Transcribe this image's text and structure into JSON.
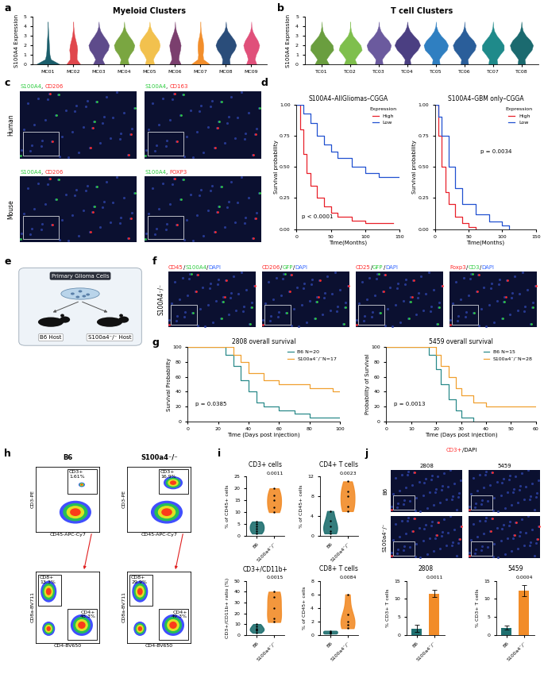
{
  "chart_data": [
    {
      "panel": "a",
      "type": "violin",
      "title": "Myeloid Clusters",
      "ylabel": "S100A4 Expression",
      "categories": [
        "MC01",
        "MC02",
        "MC03",
        "MC04",
        "MC05",
        "MC06",
        "MC07",
        "MC08",
        "MC09"
      ],
      "colors": [
        "#1b5e6b",
        "#e0474c",
        "#5e4b8b",
        "#7aa641",
        "#f2c14e",
        "#7b3f6e",
        "#f28e2b",
        "#2a4d7a",
        "#e0507a"
      ],
      "density_y": [
        0,
        0.5,
        1,
        1.5,
        2,
        2.5,
        3,
        3.5,
        4,
        4.5
      ],
      "widths": [
        [
          1.0,
          0.25,
          0.15,
          0.12,
          0.1,
          0.08,
          0.05,
          0.03,
          0.01,
          0
        ],
        [
          0.6,
          0.3,
          0.3,
          0.35,
          0.3,
          0.2,
          0.1,
          0.05,
          0.01,
          0
        ],
        [
          0.5,
          0.3,
          0.5,
          0.8,
          0.9,
          0.7,
          0.4,
          0.15,
          0.03,
          0
        ],
        [
          0.4,
          0.3,
          0.5,
          0.8,
          0.9,
          0.7,
          0.4,
          0.15,
          0.03,
          0
        ],
        [
          0.4,
          0.3,
          0.5,
          0.8,
          0.9,
          0.8,
          0.5,
          0.2,
          0.05,
          0
        ],
        [
          0.5,
          0.3,
          0.35,
          0.45,
          0.5,
          0.4,
          0.25,
          0.1,
          0.02,
          0
        ],
        [
          0.8,
          0.25,
          0.2,
          0.25,
          0.25,
          0.2,
          0.1,
          0.04,
          0.01,
          0
        ],
        [
          0.35,
          0.3,
          0.45,
          0.75,
          0.9,
          0.75,
          0.45,
          0.15,
          0.03,
          0
        ],
        [
          0.45,
          0.3,
          0.4,
          0.6,
          0.7,
          0.55,
          0.3,
          0.1,
          0.02,
          0
        ]
      ],
      "ylim": [
        0,
        5
      ],
      "yticks": [
        0,
        1,
        2,
        3,
        4,
        5
      ]
    },
    {
      "panel": "b",
      "type": "violin",
      "title": "T cell Clusters",
      "ylabel": "S100A4 Expression",
      "categories": [
        "TC01",
        "TC02",
        "TC03",
        "TC04",
        "TC05",
        "TC06",
        "TC07",
        "TC08"
      ],
      "colors": [
        "#6a9e3f",
        "#7fbf4d",
        "#6b5a9e",
        "#4b3f82",
        "#2f7fc1",
        "#2a5e9a",
        "#1f8a8a",
        "#1b6a6f"
      ],
      "density_y": [
        0,
        0.5,
        1,
        1.5,
        2,
        2.5,
        3,
        3.5,
        4,
        4.5
      ],
      "widths": [
        [
          0.55,
          0.35,
          0.6,
          0.9,
          0.85,
          0.55,
          0.25,
          0.08,
          0.02,
          0
        ],
        [
          0.5,
          0.35,
          0.6,
          0.9,
          0.8,
          0.5,
          0.2,
          0.06,
          0.01,
          0
        ],
        [
          0.3,
          0.25,
          0.5,
          0.85,
          0.95,
          0.75,
          0.4,
          0.15,
          0.03,
          0
        ],
        [
          0.25,
          0.2,
          0.45,
          0.8,
          1.0,
          0.85,
          0.5,
          0.2,
          0.05,
          0
        ],
        [
          0.3,
          0.25,
          0.5,
          0.85,
          0.95,
          0.75,
          0.4,
          0.15,
          0.03,
          0
        ],
        [
          0.3,
          0.25,
          0.5,
          0.8,
          0.9,
          0.7,
          0.35,
          0.12,
          0.02,
          0
        ],
        [
          0.35,
          0.3,
          0.55,
          0.85,
          0.85,
          0.6,
          0.3,
          0.1,
          0.02,
          0
        ],
        [
          0.3,
          0.25,
          0.5,
          0.8,
          0.9,
          0.7,
          0.35,
          0.12,
          0.03,
          0
        ]
      ],
      "ylim": [
        0,
        5
      ],
      "yticks": [
        0,
        1,
        2,
        3,
        4,
        5
      ]
    },
    {
      "panel": "d",
      "type": "survival",
      "title": "S100A4–AllGliomas–CGGA",
      "xlabel": "Time(Months)",
      "ylabel": "Survival probability",
      "legend": "upper right",
      "legend_title": "Expression",
      "annotation": "p < 0.0001",
      "series": [
        {
          "name": "High",
          "color": "#e8202a",
          "x": [
            0,
            5,
            10,
            15,
            20,
            30,
            40,
            50,
            60,
            80,
            100,
            120,
            140
          ],
          "values": [
            1,
            0.8,
            0.6,
            0.45,
            0.35,
            0.25,
            0.18,
            0.13,
            0.1,
            0.07,
            0.05,
            0.05,
            0.05
          ]
        },
        {
          "name": "Low",
          "color": "#2050d0",
          "x": [
            0,
            10,
            20,
            30,
            40,
            50,
            60,
            80,
            100,
            120,
            150
          ],
          "values": [
            1,
            0.93,
            0.85,
            0.75,
            0.68,
            0.62,
            0.57,
            0.5,
            0.45,
            0.42,
            0.42
          ]
        }
      ],
      "xlim": [
        0,
        150
      ],
      "xticks": [
        0,
        50,
        100,
        150
      ],
      "ylim": [
        0,
        1
      ],
      "yticks": [
        {
          "value": 0,
          "label": "0.00"
        },
        {
          "value": 0.25,
          "label": "0.25"
        },
        {
          "value": 0.5,
          "label": "0.50"
        },
        {
          "value": 0.75,
          "label": "0.75"
        },
        {
          "value": 1,
          "label": "1.00"
        }
      ]
    },
    {
      "panel": "d",
      "type": "survival",
      "title": "S100A4–GBM only–CGGA",
      "xlabel": "Time(Months)",
      "ylabel": "Survival probability",
      "legend": "upper right",
      "legend_title": "Expression",
      "annotation": "p = 0.0034",
      "series": [
        {
          "name": "High",
          "color": "#e8202a",
          "x": [
            0,
            5,
            10,
            15,
            20,
            30,
            40,
            50,
            60
          ],
          "values": [
            1,
            0.75,
            0.5,
            0.3,
            0.2,
            0.1,
            0.05,
            0.02,
            0
          ]
        },
        {
          "name": "Low",
          "color": "#2050d0",
          "x": [
            0,
            5,
            10,
            20,
            30,
            40,
            60,
            80,
            100,
            110
          ],
          "values": [
            1,
            0.9,
            0.75,
            0.5,
            0.33,
            0.2,
            0.12,
            0.06,
            0.03,
            0
          ]
        }
      ],
      "xlim": [
        0,
        150
      ],
      "xticks": [
        0,
        50,
        100,
        150
      ],
      "ylim": [
        0,
        1
      ],
      "yticks": [
        {
          "value": 0,
          "label": "0.00"
        },
        {
          "value": 0.25,
          "label": "0.25"
        },
        {
          "value": 0.5,
          "label": "0.50"
        },
        {
          "value": 0.75,
          "label": "0.75"
        },
        {
          "value": 1,
          "label": "1.00"
        }
      ]
    },
    {
      "panel": "g",
      "type": "survival",
      "title": "2808 overall survival",
      "xlabel": "Time (Days post injection)",
      "ylabel": "Survival Probability",
      "legend": "upper right",
      "annotation": "p = 0.0385",
      "series": [
        {
          "name": "B6 N=20",
          "color": "#2a8a8a",
          "x": [
            0,
            25,
            30,
            35,
            40,
            45,
            50,
            60,
            70,
            80,
            100
          ],
          "values": [
            100,
            90,
            75,
            55,
            40,
            25,
            20,
            15,
            10,
            5,
            5
          ]
        },
        {
          "name": "S100a4⁻/⁻N=17",
          "color": "#f0a030",
          "x": [
            0,
            30,
            35,
            40,
            50,
            60,
            80,
            95,
            100
          ],
          "values": [
            100,
            90,
            80,
            65,
            55,
            50,
            45,
            40,
            40
          ]
        }
      ],
      "xlim": [
        0,
        100
      ],
      "xticks": [
        0,
        20,
        40,
        60,
        80,
        100
      ],
      "ylim": [
        0,
        100
      ],
      "yticks": [
        0,
        20,
        40,
        60,
        80,
        100
      ]
    },
    {
      "panel": "g",
      "type": "survival",
      "title": "5459 overall survival",
      "xlabel": "Time (Days post injection)",
      "ylabel": "Probability of Survival",
      "legend": "upper right",
      "annotation": "p = 0.0013",
      "series": [
        {
          "name": "B6 N=15",
          "color": "#2a8a8a",
          "x": [
            0,
            17,
            20,
            22,
            25,
            28,
            30,
            35
          ],
          "values": [
            100,
            90,
            70,
            50,
            30,
            15,
            5,
            0
          ]
        },
        {
          "name": "S100a4⁻/⁻N=28",
          "color": "#f0a030",
          "x": [
            0,
            20,
            22,
            25,
            28,
            30,
            35,
            40,
            60
          ],
          "values": [
            100,
            90,
            75,
            60,
            45,
            35,
            25,
            20,
            20
          ]
        }
      ],
      "xlim": [
        0,
        60
      ],
      "xticks": [
        0,
        10,
        20,
        30,
        40,
        50,
        60
      ],
      "ylim": [
        0,
        100
      ],
      "yticks": [
        0,
        20,
        40,
        60,
        80,
        100
      ]
    },
    {
      "panel": "i",
      "type": "violin",
      "title": "CD3+ cells",
      "ylabel": "% of CD45+ cells",
      "annotation": "0.0011",
      "categories": [
        "B6",
        "S100a4⁻/⁻"
      ],
      "colors": [
        "#1f6f6f",
        "#f28c28"
      ],
      "points": [
        [
          1,
          2,
          3,
          4,
          5,
          6
        ],
        [
          10,
          12,
          15,
          17,
          20
        ]
      ],
      "ylim": [
        0,
        25
      ],
      "yticks": [
        0,
        5,
        10,
        15,
        20,
        25
      ]
    },
    {
      "panel": "i",
      "type": "violin",
      "title": "CD4+ T cells",
      "ylabel": "% of CD45+ cells",
      "annotation": "0.0023",
      "categories": [
        "B6",
        "S100a4⁻/⁻"
      ],
      "colors": [
        "#1f6f6f",
        "#f28c28"
      ],
      "points": [
        [
          0.5,
          1,
          2,
          3,
          5
        ],
        [
          5,
          6,
          8,
          9,
          11
        ]
      ],
      "ylim": [
        0,
        12
      ],
      "yticks": [
        0,
        4,
        8,
        12
      ]
    },
    {
      "panel": "i",
      "type": "violin",
      "title": "CD3+/CD11b+",
      "ylabel": "CD3+/CD11b+ ratio (%)",
      "annotation": "0.0015",
      "categories": [
        "B6",
        "S100a4⁻/⁻"
      ],
      "colors": [
        "#1f6f6f",
        "#f28c28"
      ],
      "points": [
        [
          2,
          4,
          5,
          6,
          8,
          10
        ],
        [
          12,
          15,
          25,
          35,
          40
        ]
      ],
      "ylim": [
        0,
        50
      ],
      "yticks": [
        0,
        10,
        20,
        30,
        40,
        50
      ]
    },
    {
      "panel": "i",
      "type": "violin",
      "title": "CD8+ T cells",
      "ylabel": "% of CD45+ cells",
      "annotation": "0.0084",
      "categories": [
        "B6",
        "S100a4⁻/⁻"
      ],
      "colors": [
        "#1f6f6f",
        "#f28c28"
      ],
      "points": [
        [
          0.2,
          0.3,
          0.5,
          0.6
        ],
        [
          1,
          1.5,
          2,
          3,
          6
        ]
      ],
      "ylim": [
        0,
        8
      ],
      "yticks": [
        0,
        2,
        4,
        6,
        8
      ]
    },
    {
      "panel": "j",
      "type": "bar",
      "title": "2808",
      "ylabel": "% CD3+ T cells",
      "annotation": "0.0011",
      "categories": [
        "B6",
        "S100a4⁻/⁻"
      ],
      "values": [
        1.8,
        11.5
      ],
      "errors": [
        1,
        1
      ],
      "colors": [
        "#1f6f6f",
        "#f28c28"
      ],
      "ylim": [
        0,
        15
      ],
      "yticks": [
        0,
        5,
        10,
        15
      ]
    },
    {
      "panel": "j",
      "type": "bar",
      "title": "5459",
      "ylabel": "% CD3+ T cells",
      "annotation": "0.0004",
      "categories": [
        "B6",
        "S100a4⁻/⁻"
      ],
      "values": [
        2,
        12.3
      ],
      "errors": [
        0.5,
        1.5
      ],
      "colors": [
        "#1f6f6f",
        "#f28c28"
      ],
      "ylim": [
        0,
        15
      ],
      "yticks": [
        0,
        5,
        10,
        15
      ]
    }
  ],
  "micrographs": [
    {
      "panel": "c",
      "separator": ", ",
      "rows": [
        {
          "label": "Human",
          "images": [
            {
              "stains": [
                {
                  "text": "S100A4",
                  "color": "#2ecc40"
                },
                {
                  "text": "CD206",
                  "color": "#ff2a2a"
                }
              ]
            },
            {
              "stains": [
                {
                  "text": "S100A4",
                  "color": "#2ecc40"
                },
                {
                  "text": "CD163",
                  "color": "#ff2a2a"
                }
              ]
            }
          ]
        },
        {
          "label": "Mouse",
          "images": [
            {
              "stains": [
                {
                  "text": "S100A4",
                  "color": "#2ecc40"
                },
                {
                  "text": "CD206",
                  "color": "#ff2a2a"
                }
              ]
            },
            {
              "stains": [
                {
                  "text": "S100A4",
                  "color": "#2ecc40"
                },
                {
                  "text": "FOXP3",
                  "color": "#ff2a2a"
                }
              ]
            }
          ]
        }
      ]
    },
    {
      "panel": "f",
      "separator": "/",
      "rows": [
        {
          "label": "S100A4⁻/⁻",
          "images": [
            {
              "stains": [
                {
                  "text": "CD45",
                  "color": "#ff2a2a"
                },
                {
                  "text": "S100A4",
                  "color": "#2ecc40"
                },
                {
                  "text": "DAPI",
                  "color": "#3a6cff"
                }
              ]
            },
            {
              "stains": [
                {
                  "text": "CD206",
                  "color": "#ff2a2a"
                },
                {
                  "text": "GFP",
                  "color": "#2ecc40"
                },
                {
                  "text": "DAPI",
                  "color": "#3a6cff"
                }
              ]
            },
            {
              "stains": [
                {
                  "text": "CD25",
                  "color": "#ff2a2a"
                },
                {
                  "text": "GFP",
                  "color": "#2ecc40"
                },
                {
                  "text": "DAPI",
                  "color": "#3a6cff"
                }
              ]
            },
            {
              "stains": [
                {
                  "text": "Foxp3",
                  "color": "#ff2a2a"
                },
                {
                  "text": "CD3",
                  "color": "#2ecc40"
                },
                {
                  "text": "DAPI",
                  "color": "#3a6cff"
                }
              ]
            }
          ]
        }
      ]
    }
  ],
  "micrograph_grid": {
    "panel": "j",
    "header": [
      {
        "text": "CD3+",
        "color": "#ff3030"
      },
      {
        "text": "/DAPI",
        "color": "#000000"
      }
    ],
    "columns": [
      "2808",
      "5459"
    ],
    "rows": [
      "B6",
      "S100a4⁻/⁻"
    ]
  },
  "diagram": {
    "panel": "e",
    "source": "Primary Glioma Cells",
    "hosts": [
      "B6 Host",
      "S100a4⁻/⁻ Host"
    ]
  },
  "flow": {
    "panel": "h",
    "columns": [
      "B6",
      "S100a4⁻/⁻"
    ],
    "top": {
      "xlabel": "CD45-APC-Cy7",
      "ylabel": "CD3-PE",
      "gates": [
        {
          "label": "CD3+",
          "percent": "1.61%"
        },
        {
          "label": "CD3+",
          "percent": "16.9%"
        }
      ]
    },
    "bottom": {
      "xlabel": "CD4-BV650",
      "ylabel": "CD8a-BV711",
      "gates": [
        [
          {
            "label": "CD8+",
            "percent": "13.3%"
          },
          {
            "label": "CD4+",
            "percent": "48.3%"
          }
        ],
        [
          {
            "label": "CD8+",
            "percent": "29.9%"
          },
          {
            "label": "CD4+",
            "percent": "49.3%"
          }
        ]
      ]
    }
  }
}
